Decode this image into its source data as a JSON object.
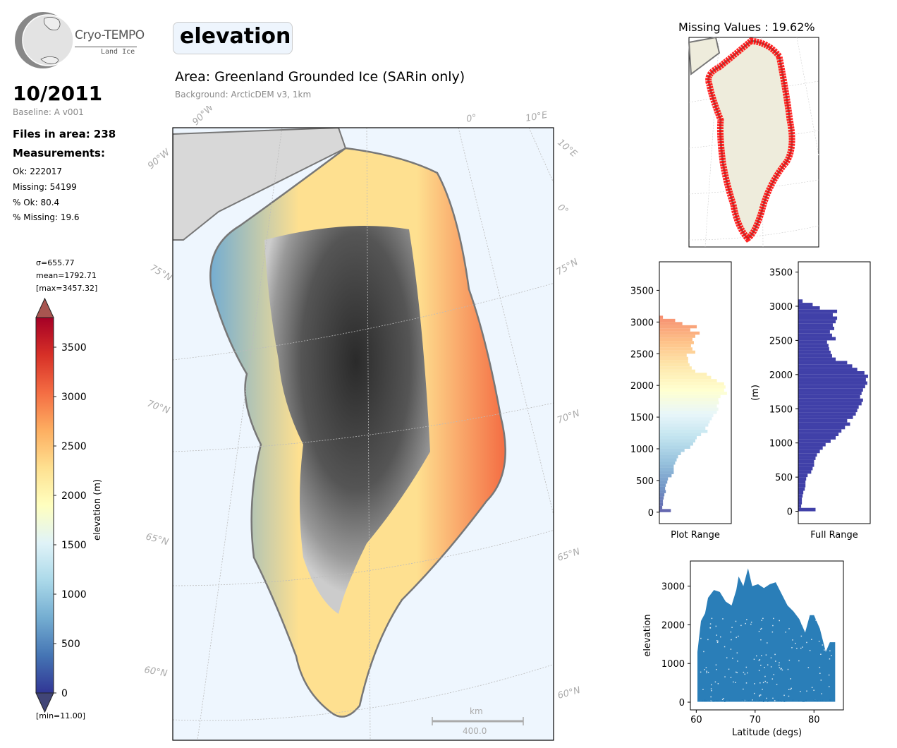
{
  "logo": {
    "title": "Cryo-TEMPO",
    "subtitle": "Land Ice"
  },
  "header": {
    "date": "10/2011",
    "baseline": "Baseline: A v001",
    "files_in_area": "Files in area: 238",
    "measurements_label": "Measurements:",
    "stats": [
      "Ok: 222017",
      "Missing: 54199",
      "% Ok: 80.4",
      "% Missing: 19.6"
    ]
  },
  "variable": "elevation",
  "area": "Area: Greenland Grounded Ice (SARin only)",
  "background": "Background: ArcticDEM v3, 1km",
  "colorbar": {
    "sigma": "σ=655.77",
    "mean": "mean=1792.71",
    "max": "[max=3457.32]",
    "min": "[min=11.00]",
    "label": "elevation (m)",
    "ticks": [
      "0",
      "500",
      "1000",
      "1500",
      "2000",
      "2500",
      "3000",
      "3500"
    ],
    "range": [
      0,
      3800
    ],
    "colormap": "RdYlBu_r",
    "colors": [
      "#313695",
      "#4575b4",
      "#74add1",
      "#abd9e9",
      "#e0f3f8",
      "#ffffbf",
      "#fee090",
      "#fdae61",
      "#f46d43",
      "#d73027",
      "#a50026"
    ]
  },
  "map": {
    "lat_labels_left": [
      "75°N",
      "70°N",
      "65°N",
      "60°N"
    ],
    "lat_labels_right": [
      "75°N",
      "70°N",
      "65°N",
      "60°N"
    ],
    "lon_labels_top": [
      "90°W",
      "0°",
      "10°E"
    ],
    "lon_labels_left": [
      "90°W"
    ],
    "lon_labels_right": [
      "10°E",
      "0°"
    ],
    "scalebar_unit": "km",
    "scalebar_value": "400.0",
    "ocean_color": "#eef6fe",
    "coast_color": "#777777"
  },
  "missing_map": {
    "title": "Missing Values : 19.62%",
    "land_color": "#eeecdc",
    "missing_color": "#ff0000"
  },
  "chart_data": [
    {
      "type": "bar",
      "orientation": "horizontal",
      "title": "",
      "xlabel": "Plot Range",
      "ylabel": "",
      "ylim": [
        -180,
        3950
      ],
      "yticks": [
        0,
        500,
        1000,
        1500,
        2000,
        2500,
        3000,
        3500
      ],
      "bin_width": 25,
      "categories_note": "elevation bins (m)",
      "bins": [
        0,
        50,
        100,
        150,
        200,
        250,
        300,
        350,
        400,
        450,
        500,
        550,
        600,
        650,
        700,
        750,
        800,
        850,
        900,
        950,
        1000,
        1050,
        1100,
        1150,
        1200,
        1250,
        1300,
        1350,
        1400,
        1450,
        1500,
        1550,
        1600,
        1650,
        1700,
        1750,
        1800,
        1850,
        1900,
        1950,
        2000,
        2050,
        2100,
        2150,
        2200,
        2250,
        2300,
        2350,
        2400,
        2450,
        2500,
        2550,
        2600,
        2650,
        2700,
        2750,
        2800,
        2850,
        2900,
        2950,
        3000,
        3050
      ],
      "values": [
        0.16,
        0.04,
        0.05,
        0.05,
        0.06,
        0.07,
        0.09,
        0.08,
        0.09,
        0.11,
        0.12,
        0.17,
        0.2,
        0.2,
        0.2,
        0.22,
        0.24,
        0.26,
        0.3,
        0.35,
        0.43,
        0.47,
        0.5,
        0.52,
        0.58,
        0.67,
        0.64,
        0.68,
        0.7,
        0.73,
        0.75,
        0.8,
        0.82,
        0.8,
        0.83,
        0.82,
        0.85,
        0.94,
        0.9,
        0.92,
        0.9,
        0.8,
        0.72,
        0.66,
        0.5,
        0.45,
        0.42,
        0.4,
        0.4,
        0.38,
        0.5,
        0.46,
        0.44,
        0.48,
        0.46,
        0.5,
        0.56,
        0.43,
        0.52,
        0.32,
        0.22,
        0.05
      ],
      "color_by_value": true
    },
    {
      "type": "bar",
      "orientation": "horizontal",
      "title": "",
      "xlabel": "Full Range",
      "ylabel": "(m)",
      "ylim": [
        -180,
        3650
      ],
      "yticks": [
        0,
        500,
        1000,
        1500,
        2000,
        2500,
        3000,
        3500
      ],
      "bins": [
        0,
        50,
        100,
        150,
        200,
        250,
        300,
        350,
        400,
        450,
        500,
        550,
        600,
        650,
        700,
        750,
        800,
        850,
        900,
        950,
        1000,
        1050,
        1100,
        1150,
        1200,
        1250,
        1300,
        1350,
        1400,
        1450,
        1500,
        1550,
        1600,
        1650,
        1700,
        1750,
        1800,
        1850,
        1900,
        1950,
        2000,
        2050,
        2100,
        2150,
        2200,
        2250,
        2300,
        2350,
        2400,
        2450,
        2500,
        2550,
        2600,
        2650,
        2700,
        2750,
        2800,
        2850,
        2900,
        2950,
        3000,
        3050
      ],
      "values": [
        0.24,
        0.04,
        0.05,
        0.05,
        0.06,
        0.07,
        0.09,
        0.1,
        0.1,
        0.11,
        0.13,
        0.18,
        0.2,
        0.22,
        0.22,
        0.24,
        0.26,
        0.3,
        0.34,
        0.38,
        0.45,
        0.52,
        0.56,
        0.6,
        0.65,
        0.72,
        0.68,
        0.76,
        0.8,
        0.82,
        0.84,
        0.88,
        0.9,
        0.86,
        0.88,
        0.9,
        0.93,
        0.96,
        0.94,
        0.97,
        0.92,
        0.82,
        0.75,
        0.68,
        0.52,
        0.47,
        0.45,
        0.43,
        0.42,
        0.4,
        0.52,
        0.47,
        0.44,
        0.5,
        0.48,
        0.52,
        0.54,
        0.48,
        0.54,
        0.3,
        0.2,
        0.06
      ],
      "color": "#4040a8"
    },
    {
      "type": "scatter",
      "title": "",
      "xlabel": "Latitude (degs)",
      "ylabel": "elevation",
      "xlim": [
        59,
        85
      ],
      "ylim": [
        -200,
        3650
      ],
      "xticks": [
        60,
        70,
        80
      ],
      "yticks": [
        0,
        1000,
        2000,
        3000
      ],
      "color": "#1f77b4",
      "envelope_upper": [
        [
          60.2,
          1300
        ],
        [
          60.8,
          2100
        ],
        [
          61.5,
          2300
        ],
        [
          62,
          2700
        ],
        [
          63,
          2900
        ],
        [
          64,
          2850
        ],
        [
          65,
          2600
        ],
        [
          66,
          2500
        ],
        [
          66.8,
          2900
        ],
        [
          67.2,
          3250
        ],
        [
          68,
          3000
        ],
        [
          68.8,
          3460
        ],
        [
          69.5,
          3000
        ],
        [
          70.5,
          3050
        ],
        [
          71.5,
          2950
        ],
        [
          72.5,
          3050
        ],
        [
          73.5,
          3100
        ],
        [
          74.5,
          2800
        ],
        [
          75.5,
          2500
        ],
        [
          76.5,
          2350
        ],
        [
          77.5,
          2150
        ],
        [
          78.5,
          1800
        ],
        [
          79.3,
          2250
        ],
        [
          80,
          2250
        ],
        [
          81,
          1900
        ],
        [
          82,
          1300
        ],
        [
          82.7,
          1550
        ],
        [
          83.6,
          1550
        ]
      ],
      "lower": 10
    }
  ]
}
